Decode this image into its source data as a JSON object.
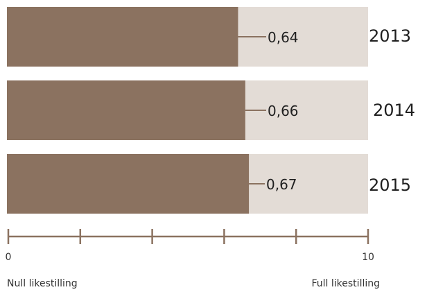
{
  "chart_data": {
    "type": "bar",
    "orientation": "horizontal",
    "categories": [
      "2013",
      "2014",
      "2015"
    ],
    "values": [
      0.64,
      0.66,
      0.67
    ],
    "value_labels": [
      "0,64",
      "0,66",
      "0,67"
    ],
    "xlim": [
      0,
      1
    ],
    "axis": {
      "tick_count": 6,
      "start_label": "0",
      "end_label": "10",
      "left_caption": "Null likestilling",
      "right_caption": "Full likestilling"
    },
    "title": "",
    "xlabel": "",
    "ylabel": "",
    "grid": false,
    "colors": {
      "bar": "#8b7260",
      "track": "#e3dcd6",
      "axis": "#8b7260",
      "leader": "#8b7260",
      "text": "#1f1f1f"
    }
  }
}
